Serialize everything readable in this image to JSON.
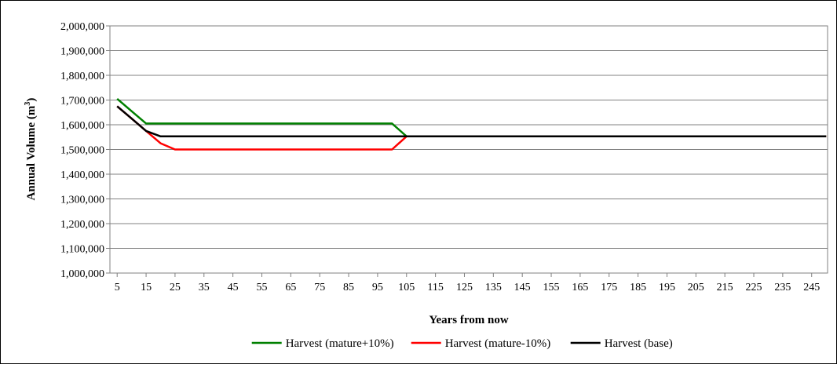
{
  "chart_data": {
    "type": "line",
    "xlabel": "Years from now",
    "ylabel": "Annual Volume (m³)",
    "ylabel_base": "Annual Volume (m",
    "ylabel_sup": "3",
    "ylabel_close": ")",
    "ylim": [
      1000000,
      2000000
    ],
    "ytick_step": 100000,
    "y_tick_labels": [
      "1,000,000",
      "1,100,000",
      "1,200,000",
      "1,300,000",
      "1,400,000",
      "1,500,000",
      "1,600,000",
      "1,700,000",
      "1,800,000",
      "1,900,000",
      "2,000,000"
    ],
    "x_tick_labels": [
      "5",
      "15",
      "25",
      "35",
      "45",
      "55",
      "65",
      "75",
      "85",
      "95",
      "105",
      "115",
      "125",
      "135",
      "145",
      "155",
      "165",
      "175",
      "185",
      "195",
      "205",
      "215",
      "225",
      "235",
      "245"
    ],
    "x": [
      5,
      10,
      15,
      20,
      25,
      30,
      35,
      40,
      45,
      50,
      55,
      60,
      65,
      70,
      75,
      80,
      85,
      90,
      95,
      100,
      105,
      110,
      115,
      120,
      125,
      130,
      135,
      140,
      145,
      150,
      155,
      160,
      165,
      170,
      175,
      180,
      185,
      190,
      195,
      200,
      205,
      210,
      215,
      220,
      225,
      230,
      235,
      240,
      245,
      250
    ],
    "grid": true,
    "legend_position": "bottom",
    "series": [
      {
        "name": "Harvest (mature+10%)",
        "color": "#008000",
        "values": [
          1705000,
          1655000,
          1605000,
          1605000,
          1605000,
          1605000,
          1605000,
          1605000,
          1605000,
          1605000,
          1605000,
          1605000,
          1605000,
          1605000,
          1605000,
          1605000,
          1605000,
          1605000,
          1605000,
          1605000,
          1553000,
          1553000,
          1553000,
          1553000,
          1553000,
          1553000,
          1553000,
          1553000,
          1553000,
          1553000,
          1553000,
          1553000,
          1553000,
          1553000,
          1553000,
          1553000,
          1553000,
          1553000,
          1553000,
          1553000,
          1553000,
          1553000,
          1553000,
          1553000,
          1553000,
          1553000,
          1553000,
          1553000,
          1553000,
          1553000
        ]
      },
      {
        "name": "Harvest (mature-10%)",
        "color": "#ff0000",
        "values": [
          1675000,
          1625000,
          1575000,
          1525000,
          1500000,
          1500000,
          1500000,
          1500000,
          1500000,
          1500000,
          1500000,
          1500000,
          1500000,
          1500000,
          1500000,
          1500000,
          1500000,
          1500000,
          1500000,
          1500000,
          1553000,
          1553000,
          1553000,
          1553000,
          1553000,
          1553000,
          1553000,
          1553000,
          1553000,
          1553000,
          1553000,
          1553000,
          1553000,
          1553000,
          1553000,
          1553000,
          1553000,
          1553000,
          1553000,
          1553000,
          1553000,
          1553000,
          1553000,
          1553000,
          1553000,
          1553000,
          1553000,
          1553000,
          1553000,
          1553000
        ]
      },
      {
        "name": "Harvest (base)",
        "color": "#000000",
        "values": [
          1675000,
          1625000,
          1575000,
          1553000,
          1553000,
          1553000,
          1553000,
          1553000,
          1553000,
          1553000,
          1553000,
          1553000,
          1553000,
          1553000,
          1553000,
          1553000,
          1553000,
          1553000,
          1553000,
          1553000,
          1553000,
          1553000,
          1553000,
          1553000,
          1553000,
          1553000,
          1553000,
          1553000,
          1553000,
          1553000,
          1553000,
          1553000,
          1553000,
          1553000,
          1553000,
          1553000,
          1553000,
          1553000,
          1553000,
          1553000,
          1553000,
          1553000,
          1553000,
          1553000,
          1553000,
          1553000,
          1553000,
          1553000,
          1553000,
          1553000
        ]
      }
    ]
  }
}
